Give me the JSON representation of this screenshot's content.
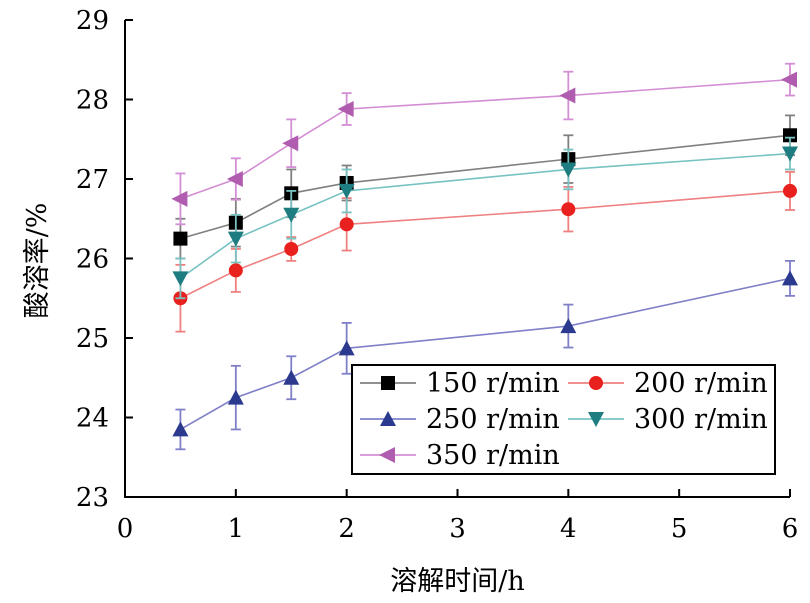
{
  "chart_data": {
    "type": "line",
    "xlabel": "溶解时间/h",
    "ylabel": "酸溶率/%",
    "xlim": [
      0,
      6
    ],
    "ylim": [
      23,
      29
    ],
    "x_ticks": [
      0,
      1,
      2,
      3,
      4,
      5,
      6
    ],
    "y_ticks": [
      23,
      24,
      25,
      26,
      27,
      28,
      29
    ],
    "grid": false,
    "legend_position": "bottom-right",
    "x": [
      0.5,
      1,
      1.5,
      2,
      4,
      6
    ],
    "series": [
      {
        "name": "150 r/min",
        "color": "#808080",
        "marker": "square",
        "marker_color": "#000000",
        "values": [
          26.25,
          26.45,
          26.82,
          26.95,
          27.25,
          27.55
        ],
        "error": [
          0.25,
          0.3,
          0.3,
          0.22,
          0.3,
          0.25
        ]
      },
      {
        "name": "200 r/min",
        "color": "#ef8080",
        "marker": "circle",
        "marker_color": "#e8201e",
        "values": [
          25.5,
          25.85,
          26.12,
          26.43,
          26.62,
          26.85
        ],
        "error": [
          0.42,
          0.27,
          0.15,
          0.33,
          0.28,
          0.24
        ]
      },
      {
        "name": "250 r/min",
        "color": "#7f80c8",
        "marker": "triangle-up",
        "marker_color": "#2b3a8e",
        "values": [
          23.85,
          24.25,
          24.5,
          24.87,
          25.15,
          25.75
        ],
        "error": [
          0.25,
          0.4,
          0.27,
          0.32,
          0.27,
          0.22
        ]
      },
      {
        "name": "300 r/min",
        "color": "#78c2c2",
        "marker": "triangle-down",
        "marker_color": "#1e7d80",
        "values": [
          25.75,
          26.25,
          26.55,
          26.85,
          27.12,
          27.32
        ],
        "error": [
          0.25,
          0.3,
          0.3,
          0.27,
          0.25,
          0.2
        ]
      },
      {
        "name": "350 r/min",
        "color": "#d48ed4",
        "marker": "triangle-left",
        "marker_color": "#b05db0",
        "values": [
          26.75,
          27.0,
          27.45,
          27.88,
          28.05,
          28.25
        ],
        "error": [
          0.32,
          0.26,
          0.3,
          0.2,
          0.3,
          0.2
        ]
      }
    ]
  }
}
